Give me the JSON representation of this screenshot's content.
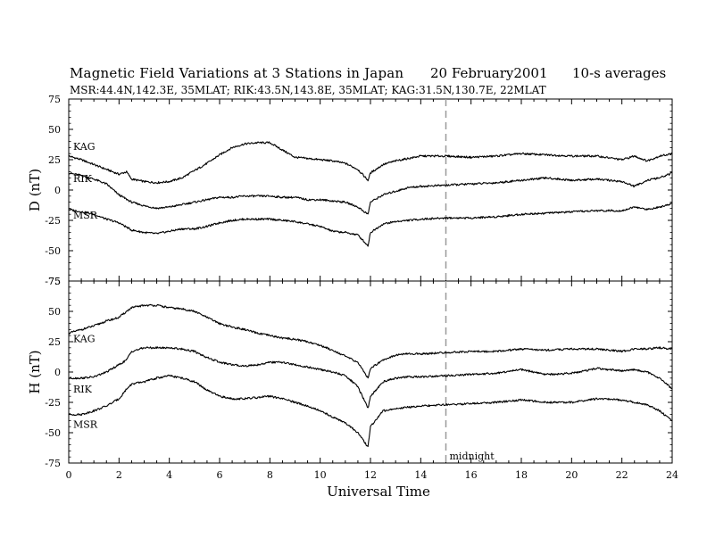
{
  "header": {
    "title": "Magnetic Field Variations at 3 Stations in Japan",
    "date": "20 February2001",
    "averaging": "10-s averages",
    "stations_line": "MSR:44.4N,142.3E, 35MLAT;  RIK:43.5N,143.8E, 35MLAT;  KAG:31.5N,130.7E, 22MLAT"
  },
  "chart_data": [
    {
      "type": "line",
      "ylabel": "D (nT)",
      "ylim": [
        -75,
        75
      ],
      "yticks": [
        "75",
        "50",
        "25",
        "0",
        "-25",
        "-50",
        "-75"
      ],
      "series": [
        {
          "name": "KAG",
          "x": [
            0,
            0.5,
            1,
            1.5,
            2,
            2.3,
            2.5,
            3,
            3.5,
            4,
            4.5,
            5,
            5.5,
            6,
            6.5,
            7,
            7.5,
            8,
            8.5,
            9,
            9.5,
            10,
            10.5,
            11,
            11.5,
            11.9,
            12,
            12.5,
            13,
            13.5,
            14,
            15,
            16,
            17,
            18,
            19,
            20,
            21,
            22,
            22.5,
            23,
            23.5,
            24
          ],
          "y": [
            28,
            25,
            21,
            17,
            13,
            15,
            9,
            7,
            6,
            7,
            10,
            16,
            22,
            29,
            35,
            38,
            39,
            39,
            33,
            27,
            26,
            25,
            24,
            22,
            17,
            8,
            14,
            21,
            24,
            26,
            28,
            28,
            27,
            28,
            30,
            29,
            28,
            28,
            25,
            28,
            24,
            28,
            30
          ]
        },
        {
          "name": "RIK",
          "x": [
            0,
            0.5,
            1,
            1.5,
            2,
            2.5,
            3,
            3.5,
            4,
            4.5,
            5,
            5.5,
            6,
            6.5,
            7,
            7.5,
            8,
            8.5,
            9,
            9.5,
            10,
            10.5,
            11,
            11.5,
            11.9,
            12,
            12.5,
            13,
            13.5,
            14,
            15,
            16,
            17,
            18,
            19,
            20,
            21,
            22,
            22.5,
            23,
            23.5,
            24
          ],
          "y": [
            14,
            12,
            9,
            5,
            -4,
            -10,
            -13,
            -15,
            -14,
            -12,
            -10,
            -8,
            -6,
            -6,
            -5,
            -5,
            -5,
            -6,
            -6,
            -8,
            -8,
            -9,
            -10,
            -14,
            -20,
            -10,
            -4,
            -1,
            2,
            3,
            4,
            5,
            6,
            8,
            10,
            8,
            9,
            7,
            3,
            8,
            10,
            14
          ]
        },
        {
          "name": "MSR",
          "x": [
            0,
            0.5,
            1,
            1.5,
            2,
            2.5,
            3,
            3.5,
            4,
            4.5,
            5,
            5.5,
            6,
            6.5,
            7,
            7.5,
            8,
            8.5,
            9,
            9.5,
            10,
            10.5,
            11,
            11.5,
            11.9,
            12,
            12.5,
            13,
            13.5,
            14,
            15,
            16,
            17,
            18,
            19,
            20,
            21,
            22,
            22.5,
            23,
            23.5,
            24
          ],
          "y": [
            -16,
            -18,
            -20,
            -24,
            -27,
            -33,
            -35,
            -36,
            -34,
            -32,
            -32,
            -30,
            -27,
            -25,
            -24,
            -24,
            -24,
            -25,
            -26,
            -28,
            -30,
            -34,
            -35,
            -37,
            -46,
            -35,
            -28,
            -26,
            -25,
            -24,
            -23,
            -23,
            -22,
            -20,
            -19,
            -18,
            -17,
            -17,
            -14,
            -16,
            -14,
            -11
          ]
        }
      ]
    },
    {
      "type": "line",
      "ylabel": "H (nT)",
      "xlabel": "Universal Time",
      "ylim": [
        -75,
        75
      ],
      "xlim": [
        0,
        24
      ],
      "yticks": [
        "75",
        "50",
        "25",
        "0",
        "-25",
        "-50",
        "-75"
      ],
      "xticks": [
        "0",
        "2",
        "4",
        "6",
        "8",
        "10",
        "12",
        "14",
        "16",
        "18",
        "20",
        "22",
        "24"
      ],
      "annotation": {
        "text": "midnight",
        "x": 15
      },
      "series": [
        {
          "name": "KAG",
          "x": [
            0,
            0.5,
            1,
            1.5,
            2,
            2.3,
            2.5,
            3,
            3.5,
            4,
            4.5,
            5,
            5.5,
            6,
            6.5,
            7,
            7.5,
            8,
            8.5,
            9,
            9.5,
            10,
            10.5,
            11,
            11.5,
            11.9,
            12,
            12.5,
            13,
            13.5,
            14,
            15,
            16,
            17,
            18,
            19,
            20,
            21,
            22,
            22.5,
            23,
            23.5,
            24
          ],
          "y": [
            32,
            35,
            38,
            42,
            45,
            50,
            53,
            55,
            55,
            53,
            52,
            50,
            45,
            40,
            37,
            35,
            32,
            30,
            28,
            27,
            25,
            22,
            18,
            13,
            8,
            -5,
            3,
            10,
            14,
            15,
            15,
            16,
            17,
            17,
            19,
            18,
            19,
            19,
            17,
            19,
            19,
            20,
            19
          ]
        },
        {
          "name": "RIK",
          "x": [
            0,
            0.5,
            1,
            1.5,
            2,
            2.3,
            2.5,
            3,
            3.5,
            4,
            4.5,
            5,
            5.5,
            6,
            6.5,
            7,
            7.5,
            8,
            8.5,
            9,
            9.5,
            10,
            10.5,
            11,
            11.5,
            11.9,
            12,
            12.5,
            13,
            13.5,
            14,
            15,
            16,
            17,
            18,
            19,
            20,
            21,
            22,
            22.5,
            23,
            23.5,
            24
          ],
          "y": [
            -5,
            -5,
            -4,
            0,
            6,
            10,
            17,
            20,
            20,
            20,
            19,
            17,
            12,
            8,
            6,
            5,
            6,
            8,
            8,
            6,
            4,
            2,
            0,
            -3,
            -12,
            -30,
            -20,
            -8,
            -5,
            -4,
            -4,
            -3,
            -2,
            -1,
            2,
            -2,
            -1,
            3,
            1,
            2,
            0,
            -5,
            -14
          ]
        },
        {
          "name": "MSR",
          "x": [
            0,
            0.5,
            1,
            1.5,
            2,
            2.3,
            2.5,
            3,
            3.5,
            4,
            4.5,
            5,
            5.5,
            6,
            6.5,
            7,
            7.5,
            8,
            8.5,
            9,
            9.5,
            10,
            10.5,
            11,
            11.5,
            11.9,
            12,
            12.5,
            13,
            13.5,
            14,
            15,
            16,
            17,
            18,
            19,
            20,
            21,
            22,
            22.5,
            23,
            23.5,
            24
          ],
          "y": [
            -35,
            -35,
            -32,
            -28,
            -22,
            -14,
            -10,
            -8,
            -5,
            -3,
            -5,
            -8,
            -15,
            -20,
            -22,
            -22,
            -21,
            -20,
            -22,
            -25,
            -28,
            -32,
            -37,
            -42,
            -50,
            -62,
            -45,
            -32,
            -30,
            -29,
            -28,
            -27,
            -26,
            -25,
            -23,
            -25,
            -25,
            -22,
            -23,
            -25,
            -27,
            -32,
            -40
          ]
        }
      ]
    }
  ]
}
